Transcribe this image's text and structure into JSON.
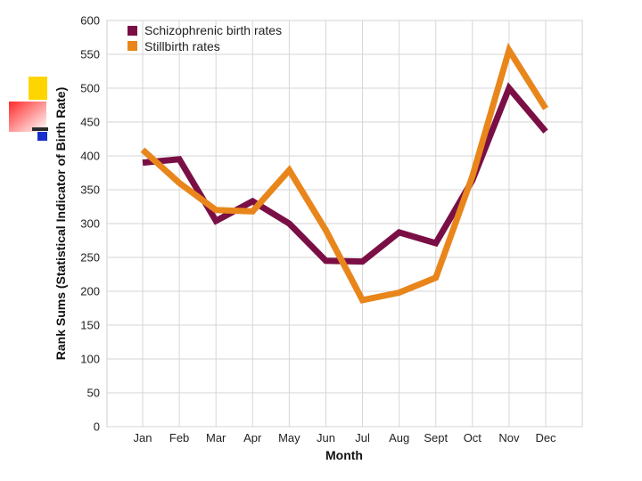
{
  "chart_data": {
    "type": "line",
    "xlabel": "Month",
    "ylabel": "Rank Sums (Statistical Indicator of Birth Rate)",
    "categories": [
      "Jan",
      "Feb",
      "Mar",
      "Apr",
      "May",
      "Jun",
      "Jul",
      "Aug",
      "Sept",
      "Oct",
      "Nov",
      "Dec"
    ],
    "ylim": [
      0,
      600
    ],
    "yticks": [
      0,
      50,
      100,
      150,
      200,
      250,
      300,
      350,
      400,
      450,
      500,
      550,
      600
    ],
    "grid": true,
    "legend_position": "top-left",
    "series": [
      {
        "name": "Schizophrenic birth rates",
        "color": "#7a0f45",
        "values": [
          390,
          395,
          304,
          333,
          300,
          245,
          244,
          287,
          271,
          364,
          500,
          436
        ]
      },
      {
        "name": "Stillbirth rates",
        "color": "#e8861c",
        "values": [
          409,
          360,
          320,
          318,
          379,
          290,
          187,
          198,
          220,
          370,
          556,
          470
        ]
      }
    ]
  },
  "decoration": {
    "squares": [
      {
        "name": "yellow-square",
        "color": "#ffd500"
      },
      {
        "name": "red-gradient-square",
        "color": "#ff2a2a"
      },
      {
        "name": "blue-square",
        "color": "#1a2ecc"
      }
    ]
  }
}
